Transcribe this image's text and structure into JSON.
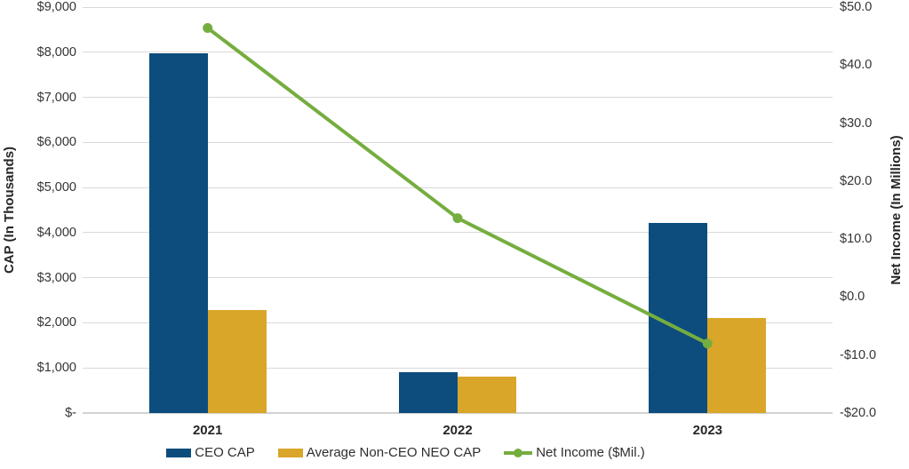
{
  "chart_data": {
    "type": "bar",
    "subtype": "combo bar + line, dual axis",
    "title": "",
    "categories": [
      "2021",
      "2022",
      "2023"
    ],
    "series": [
      {
        "name": "CEO CAP",
        "type": "bar",
        "axis": "left",
        "color": "#0d4d7d",
        "values": [
          7970,
          905,
          4210
        ]
      },
      {
        "name": "Average Non-CEO NEO CAP",
        "type": "bar",
        "axis": "left",
        "color": "#d9a62a",
        "values": [
          2280,
          805,
          2110
        ]
      },
      {
        "name": "Net Income ($Mil.)",
        "type": "line",
        "axis": "right",
        "color": "#76ad3f",
        "values": [
          46.4,
          13.6,
          -8.0
        ]
      }
    ],
    "left_axis": {
      "label": "CAP (In Thousands)",
      "min": 0,
      "max": 9000,
      "step": 1000,
      "ticks": [
        {
          "value": 9000,
          "label": "$9,000"
        },
        {
          "value": 8000,
          "label": "$8,000"
        },
        {
          "value": 7000,
          "label": "$7,000"
        },
        {
          "value": 6000,
          "label": "$6,000"
        },
        {
          "value": 5000,
          "label": "$5,000"
        },
        {
          "value": 4000,
          "label": "$4,000"
        },
        {
          "value": 3000,
          "label": "$3,000"
        },
        {
          "value": 2000,
          "label": "$2,000"
        },
        {
          "value": 1000,
          "label": "$1,000"
        },
        {
          "value": 0,
          "label": "$-"
        }
      ]
    },
    "right_axis": {
      "label": "Net Income (In Millions)",
      "min": -20,
      "max": 50,
      "step": 10,
      "ticks": [
        {
          "value": 50,
          "label": "$50.0"
        },
        {
          "value": 40,
          "label": "$40.0"
        },
        {
          "value": 30,
          "label": "$30.0"
        },
        {
          "value": 20,
          "label": "$20.0"
        },
        {
          "value": 10,
          "label": "$10.0"
        },
        {
          "value": 0,
          "label": "$0.0"
        },
        {
          "value": -10,
          "label": "-$10.0"
        },
        {
          "value": -20,
          "label": "-$20.0"
        }
      ]
    },
    "grid": true,
    "legend_position": "bottom",
    "colors": {
      "gridline": "#d9d9d9",
      "axis_line": "#d2d2d2",
      "tick_text": "#343434",
      "title_text": "#262626",
      "background": "#ffffff"
    }
  }
}
